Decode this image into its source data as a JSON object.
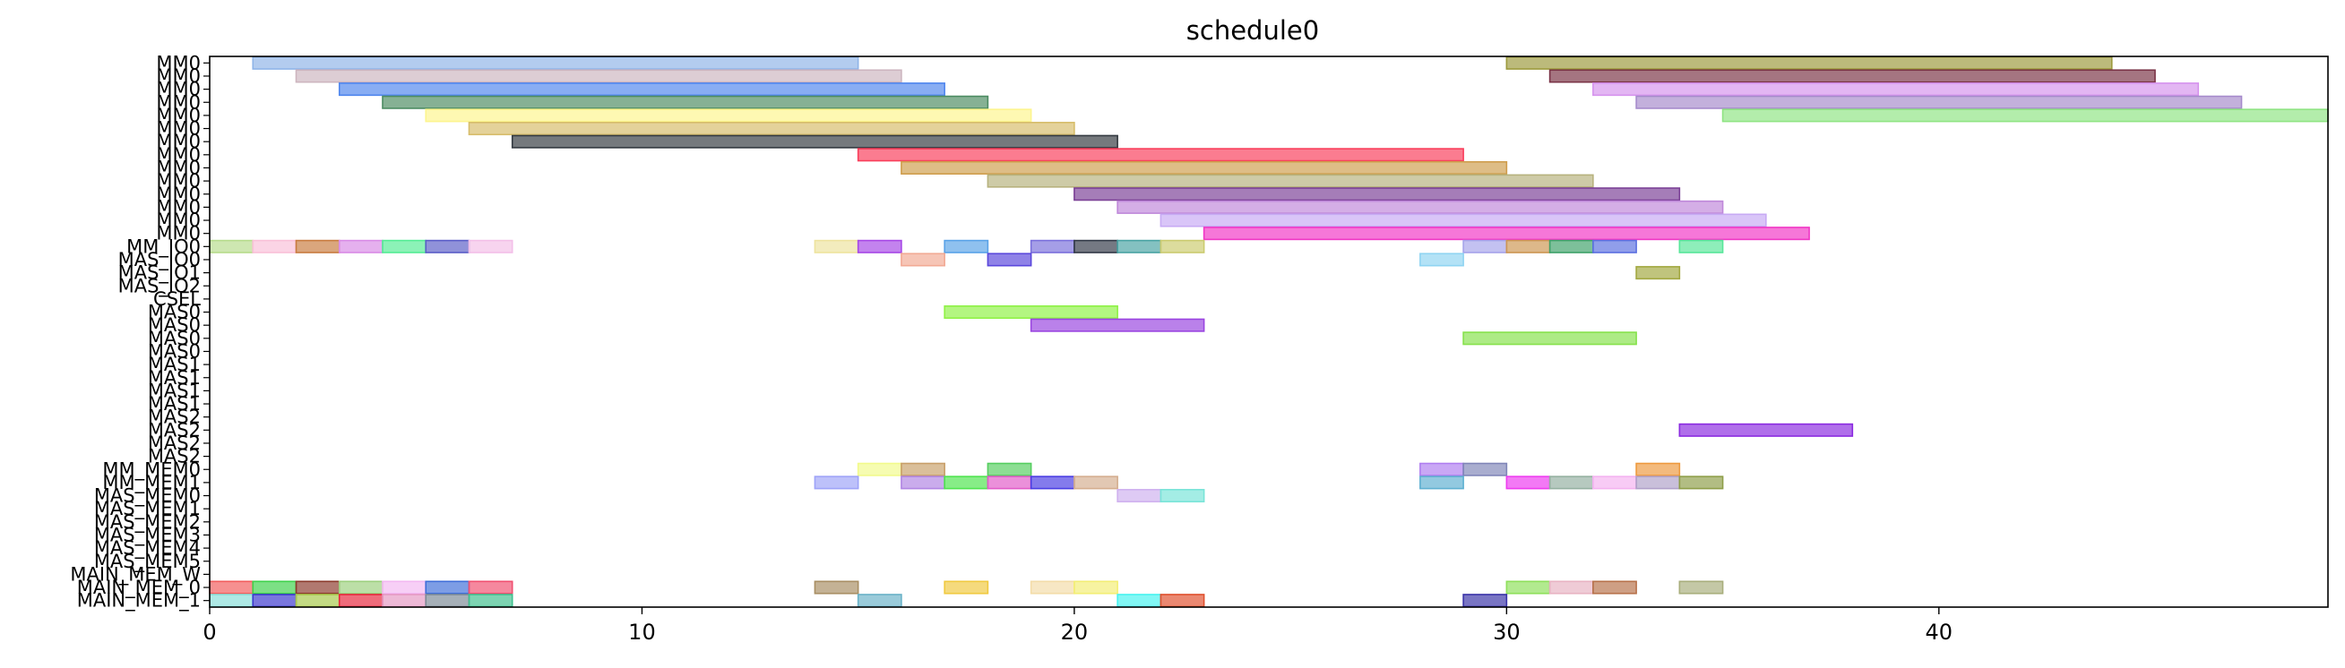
{
  "chart_data": {
    "type": "gantt",
    "title": "schedule0",
    "xlabel": "",
    "ylabel": "",
    "xlim": [
      0,
      49
    ],
    "x_ticks": [
      0,
      10,
      20,
      30,
      40
    ],
    "grid": false,
    "rows": [
      "MM0",
      "MM0",
      "MM0",
      "MM0",
      "MM0",
      "MM0",
      "MM0",
      "MM0",
      "MM0",
      "MM0",
      "MM0",
      "MM0",
      "MM0",
      "MM0",
      "MM_IO0",
      "MAS_IO0",
      "MAS_IO1",
      "MAS_IO2",
      "CSEL",
      "MAS0",
      "MAS0",
      "MAS0",
      "MAS0",
      "MAS1",
      "MAS1",
      "MAS1",
      "MAS1",
      "MAS2",
      "MAS2",
      "MAS2",
      "MAS2",
      "MM_MEM0",
      "MM_MEM1",
      "MAS_MEM0",
      "MAS_MEM1",
      "MAS_MEM2",
      "MAS_MEM3",
      "MAS_MEM4",
      "MAS_MEM5",
      "MAIN_MEM_W",
      "MAIN_MEM_0",
      "MAIN_MEM_1"
    ],
    "bars": [
      {
        "row": 0,
        "start": 1,
        "end": 15,
        "color": "#8fb4e8"
      },
      {
        "row": 0,
        "start": 30,
        "end": 44,
        "color": "#9c9a3c"
      },
      {
        "row": 1,
        "start": 2,
        "end": 16,
        "color": "#cdb5bf"
      },
      {
        "row": 1,
        "start": 31,
        "end": 45,
        "color": "#7a3346"
      },
      {
        "row": 2,
        "start": 3,
        "end": 17,
        "color": "#4f86ee"
      },
      {
        "row": 2,
        "start": 32,
        "end": 46,
        "color": "#d693ee"
      },
      {
        "row": 3,
        "start": 4,
        "end": 18,
        "color": "#4c8c62"
      },
      {
        "row": 3,
        "start": 33,
        "end": 47,
        "color": "#a68bcc"
      },
      {
        "row": 4,
        "start": 5,
        "end": 19,
        "color": "#fdf58e"
      },
      {
        "row": 4,
        "start": 35,
        "end": 49,
        "color": "#8fe483"
      },
      {
        "row": 5,
        "start": 6,
        "end": 20,
        "color": "#d7bd6a"
      },
      {
        "row": 6,
        "start": 7,
        "end": 21,
        "color": "#333940"
      },
      {
        "row": 7,
        "start": 15,
        "end": 29,
        "color": "#f93e5b"
      },
      {
        "row": 8,
        "start": 16,
        "end": 30,
        "color": "#cf9d4c"
      },
      {
        "row": 9,
        "start": 18,
        "end": 32,
        "color": "#b7b27d"
      },
      {
        "row": 10,
        "start": 20,
        "end": 34,
        "color": "#7b4096"
      },
      {
        "row": 11,
        "start": 21,
        "end": 35,
        "color": "#bf88da"
      },
      {
        "row": 12,
        "start": 22,
        "end": 36,
        "color": "#c7aaf4"
      },
      {
        "row": 13,
        "start": 23,
        "end": 37,
        "color": "#f136c6"
      },
      {
        "row": 14,
        "start": 0,
        "end": 1,
        "color": "#b7dc8c"
      },
      {
        "row": 14,
        "start": 1,
        "end": 2,
        "color": "#f9c0d8"
      },
      {
        "row": 14,
        "start": 2,
        "end": 3,
        "color": "#c87c40"
      },
      {
        "row": 14,
        "start": 3,
        "end": 4,
        "color": "#d98be6"
      },
      {
        "row": 14,
        "start": 4,
        "end": 5,
        "color": "#55ec95"
      },
      {
        "row": 14,
        "start": 5,
        "end": 6,
        "color": "#5b5ec7"
      },
      {
        "row": 14,
        "start": 6,
        "end": 7,
        "color": "#f3bfe8"
      },
      {
        "row": 14,
        "start": 14,
        "end": 15,
        "color": "#eee39e"
      },
      {
        "row": 14,
        "start": 15,
        "end": 16,
        "color": "#a748e6"
      },
      {
        "row": 14,
        "start": 17,
        "end": 18,
        "color": "#5aa3e8"
      },
      {
        "row": 14,
        "start": 19,
        "end": 20,
        "color": "#7b70dc"
      },
      {
        "row": 14,
        "start": 20,
        "end": 21,
        "color": "#333a48"
      },
      {
        "row": 14,
        "start": 21,
        "end": 22,
        "color": "#4aa3a3"
      },
      {
        "row": 14,
        "start": 22,
        "end": 23,
        "color": "#cbcb6f"
      },
      {
        "row": 14,
        "start": 29,
        "end": 30,
        "color": "#a6a3ea"
      },
      {
        "row": 14,
        "start": 30,
        "end": 31,
        "color": "#cd9653"
      },
      {
        "row": 14,
        "start": 31,
        "end": 32,
        "color": "#3fa26a"
      },
      {
        "row": 14,
        "start": 32,
        "end": 33,
        "color": "#5c70e0"
      },
      {
        "row": 14,
        "start": 34,
        "end": 35,
        "color": "#58e69a"
      },
      {
        "row": 15,
        "start": 16,
        "end": 17,
        "color": "#f2a994"
      },
      {
        "row": 15,
        "start": 18,
        "end": 19,
        "color": "#5a47dc"
      },
      {
        "row": 15,
        "start": 28,
        "end": 29,
        "color": "#8fd4f2"
      },
      {
        "row": 16,
        "start": 33,
        "end": 34,
        "color": "#a2a840"
      },
      {
        "row": 19,
        "start": 17,
        "end": 21,
        "color": "#8ff245"
      },
      {
        "row": 20,
        "start": 19,
        "end": 23,
        "color": "#9a45e0"
      },
      {
        "row": 21,
        "start": 29,
        "end": 33,
        "color": "#86e24b"
      },
      {
        "row": 28,
        "start": 34,
        "end": 38,
        "color": "#8b2be0"
      },
      {
        "row": 31,
        "start": 15,
        "end": 16,
        "color": "#f2fa8c"
      },
      {
        "row": 31,
        "start": 16,
        "end": 17,
        "color": "#c9a06a"
      },
      {
        "row": 31,
        "start": 18,
        "end": 19,
        "color": "#56ce60"
      },
      {
        "row": 31,
        "start": 28,
        "end": 29,
        "color": "#b07ef0"
      },
      {
        "row": 31,
        "start": 29,
        "end": 30,
        "color": "#8086b8"
      },
      {
        "row": 31,
        "start": 33,
        "end": 34,
        "color": "#ee9a3f"
      },
      {
        "row": 32,
        "start": 14,
        "end": 15,
        "color": "#9ea3f8"
      },
      {
        "row": 32,
        "start": 16,
        "end": 17,
        "color": "#b185e3"
      },
      {
        "row": 32,
        "start": 17,
        "end": 18,
        "color": "#4ee44e"
      },
      {
        "row": 32,
        "start": 18,
        "end": 19,
        "color": "#e15bc8"
      },
      {
        "row": 32,
        "start": 19,
        "end": 20,
        "color": "#4a3de3"
      },
      {
        "row": 32,
        "start": 20,
        "end": 21,
        "color": "#d4ae8f"
      },
      {
        "row": 32,
        "start": 28,
        "end": 29,
        "color": "#5fb0d1"
      },
      {
        "row": 32,
        "start": 30,
        "end": 31,
        "color": "#ee3af0"
      },
      {
        "row": 32,
        "start": 31,
        "end": 32,
        "color": "#94b0a0"
      },
      {
        "row": 32,
        "start": 32,
        "end": 33,
        "color": "#f4b2f0"
      },
      {
        "row": 32,
        "start": 33,
        "end": 34,
        "color": "#b0a0c8"
      },
      {
        "row": 32,
        "start": 34,
        "end": 35,
        "color": "#8e9e48"
      },
      {
        "row": 33,
        "start": 21,
        "end": 22,
        "color": "#cfb1ef"
      },
      {
        "row": 33,
        "start": 22,
        "end": 23,
        "color": "#79e4d8"
      },
      {
        "row": 40,
        "start": 0,
        "end": 1,
        "color": "#f25c5c"
      },
      {
        "row": 40,
        "start": 1,
        "end": 2,
        "color": "#3ed24b"
      },
      {
        "row": 40,
        "start": 2,
        "end": 3,
        "color": "#8c3a2c"
      },
      {
        "row": 40,
        "start": 3,
        "end": 4,
        "color": "#9cd07e"
      },
      {
        "row": 40,
        "start": 4,
        "end": 5,
        "color": "#f3b8f2"
      },
      {
        "row": 40,
        "start": 5,
        "end": 6,
        "color": "#3f6ed9"
      },
      {
        "row": 40,
        "start": 6,
        "end": 7,
        "color": "#f04f70"
      },
      {
        "row": 40,
        "start": 14,
        "end": 15,
        "color": "#a88e63"
      },
      {
        "row": 40,
        "start": 17,
        "end": 18,
        "color": "#f0c93f"
      },
      {
        "row": 40,
        "start": 19,
        "end": 20,
        "color": "#f3dca8"
      },
      {
        "row": 40,
        "start": 20,
        "end": 21,
        "color": "#f3ee74"
      },
      {
        "row": 40,
        "start": 30,
        "end": 31,
        "color": "#8ee05a"
      },
      {
        "row": 40,
        "start": 31,
        "end": 32,
        "color": "#e8b3c2"
      },
      {
        "row": 40,
        "start": 32,
        "end": 33,
        "color": "#b7714a"
      },
      {
        "row": 40,
        "start": 34,
        "end": 35,
        "color": "#a8ae7c"
      },
      {
        "row": 41,
        "start": 0,
        "end": 1,
        "color": "#88dfd8"
      },
      {
        "row": 41,
        "start": 1,
        "end": 2,
        "color": "#3b37ce"
      },
      {
        "row": 41,
        "start": 2,
        "end": 3,
        "color": "#a7c84a"
      },
      {
        "row": 41,
        "start": 3,
        "end": 4,
        "color": "#e8263c"
      },
      {
        "row": 41,
        "start": 4,
        "end": 5,
        "color": "#e598c2"
      },
      {
        "row": 41,
        "start": 5,
        "end": 6,
        "color": "#7c8a96"
      },
      {
        "row": 41,
        "start": 6,
        "end": 7,
        "color": "#3fc08e"
      },
      {
        "row": 41,
        "start": 15,
        "end": 16,
        "color": "#6ab2c8"
      },
      {
        "row": 41,
        "start": 21,
        "end": 22,
        "color": "#47f3f0"
      },
      {
        "row": 41,
        "start": 22,
        "end": 23,
        "color": "#e0502e"
      },
      {
        "row": 41,
        "start": 29,
        "end": 30,
        "color": "#3a34a8"
      }
    ]
  }
}
